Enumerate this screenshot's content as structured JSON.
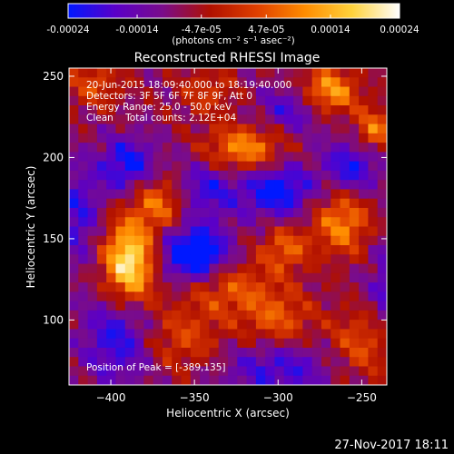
{
  "chart_data": {
    "type": "heatmap",
    "title": "Reconstructed RHESSI Image",
    "info_lines": [
      "20-Jun-2015 18:09:40.000 to 18:19:40.000",
      "Detectors: 3F 5F 6F 7F 8F 9F, Att 0",
      "Energy Range: 25.0 - 50.0 keV",
      "Clean    Total counts: 2.12E+04"
    ],
    "peak_label": "Position of Peak = [-389,135]",
    "peak": [
      -389,
      135
    ],
    "xlabel": "Heliocentric X (arcsec)",
    "ylabel": "Heliocentric Y (arcsec)",
    "xlim": [
      -425,
      -235
    ],
    "ylim": [
      60,
      255
    ],
    "x_ticks": [
      -400,
      -350,
      -300,
      -250
    ],
    "y_ticks": [
      100,
      150,
      200,
      250
    ],
    "grid": false,
    "colorbar": {
      "ticks": [
        -0.00024,
        -0.00014,
        -4.7e-05,
        4.7e-05,
        0.00014,
        0.00024
      ],
      "tick_labels": [
        "-0.00024",
        "-0.00014",
        "-4.7e-05",
        "4.7e-05",
        "0.00014",
        "0.00024"
      ],
      "range": [
        -0.00024,
        0.00024
      ],
      "units_label": "(photons cm⁻² s⁻¹ asec⁻²)",
      "colors": [
        "#0018ff",
        "#5a00c8",
        "#7a0c8a",
        "#b01000",
        "#e04000",
        "#ff8c00",
        "#ffd23c",
        "#ffffff"
      ]
    },
    "sources": [
      {
        "x": -389,
        "y": 135,
        "sx": 11,
        "sy": 18,
        "amp": 1.0
      },
      {
        "x": -370,
        "y": 173,
        "sx": 12,
        "sy": 12,
        "amp": 0.55
      },
      {
        "x": -320,
        "y": 205,
        "sx": 16,
        "sy": 10,
        "amp": 0.62
      },
      {
        "x": -270,
        "y": 240,
        "sx": 12,
        "sy": 10,
        "amp": 0.72
      },
      {
        "x": -243,
        "y": 216,
        "sx": 8,
        "sy": 10,
        "amp": 0.55
      },
      {
        "x": -262,
        "y": 160,
        "sx": 12,
        "sy": 14,
        "amp": 0.58
      },
      {
        "x": -296,
        "y": 144,
        "sx": 10,
        "sy": 10,
        "amp": 0.45
      },
      {
        "x": -330,
        "y": 120,
        "sx": 20,
        "sy": 12,
        "amp": 0.42
      },
      {
        "x": -300,
        "y": 100,
        "sx": 15,
        "sy": 12,
        "amp": 0.4
      },
      {
        "x": -358,
        "y": 88,
        "sx": 18,
        "sy": 14,
        "amp": 0.35
      },
      {
        "x": -250,
        "y": 85,
        "sx": 14,
        "sy": 15,
        "amp": 0.4
      },
      {
        "x": -410,
        "y": 245,
        "sx": 12,
        "sy": 10,
        "amp": 0.35
      },
      {
        "x": -342,
        "y": 240,
        "sx": 12,
        "sy": 10,
        "amp": 0.3
      },
      {
        "x": -350,
        "y": 140,
        "sx": 14,
        "sy": 12,
        "amp": -0.85
      },
      {
        "x": -390,
        "y": 195,
        "sx": 12,
        "sy": 12,
        "amp": -0.55
      },
      {
        "x": -345,
        "y": 180,
        "sx": 15,
        "sy": 12,
        "amp": -0.45
      },
      {
        "x": -300,
        "y": 180,
        "sx": 15,
        "sy": 12,
        "amp": -0.6
      },
      {
        "x": -395,
        "y": 90,
        "sx": 15,
        "sy": 20,
        "amp": -0.5
      },
      {
        "x": -300,
        "y": 70,
        "sx": 25,
        "sy": 12,
        "amp": -0.4
      },
      {
        "x": -255,
        "y": 195,
        "sx": 12,
        "sy": 12,
        "amp": -0.5
      },
      {
        "x": -230,
        "y": 120,
        "sx": 10,
        "sy": 20,
        "amp": -0.45
      },
      {
        "x": -290,
        "y": 230,
        "sx": 15,
        "sy": 10,
        "amp": -0.4
      },
      {
        "x": -420,
        "y": 165,
        "sx": 10,
        "sy": 20,
        "amp": -0.4
      }
    ]
  },
  "footer": {
    "timestamp": "27-Nov-2017 18:11"
  }
}
